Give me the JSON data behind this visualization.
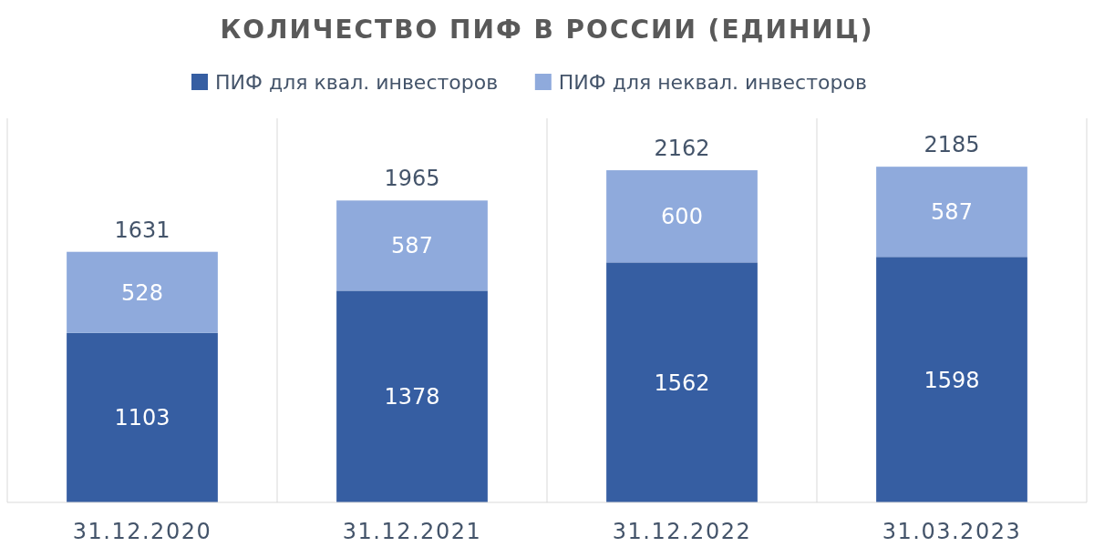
{
  "chart_data": {
    "type": "bar",
    "title": "КОЛИЧЕСТВО ПИФ В РОССИИ (ЕДИНИЦ)",
    "categories": [
      "31.12.2020",
      "31.12.2021",
      "31.12.2022",
      "31.03.2023"
    ],
    "stacked": true,
    "series": [
      {
        "name": "ПИФ для квал. инвесторов",
        "color": "#365ea2",
        "values": [
          1103,
          1378,
          1562,
          1598
        ]
      },
      {
        "name": "ПИФ для неквал. инвесторов",
        "color": "#8faadc",
        "values": [
          528,
          587,
          600,
          587
        ]
      }
    ],
    "totals": [
      "1631",
      "1965",
      "2162",
      "2185"
    ],
    "data_labels": true,
    "ylim": [
      0,
      2500
    ],
    "tick_labels": "x",
    "grid": "x",
    "legend": "top"
  }
}
